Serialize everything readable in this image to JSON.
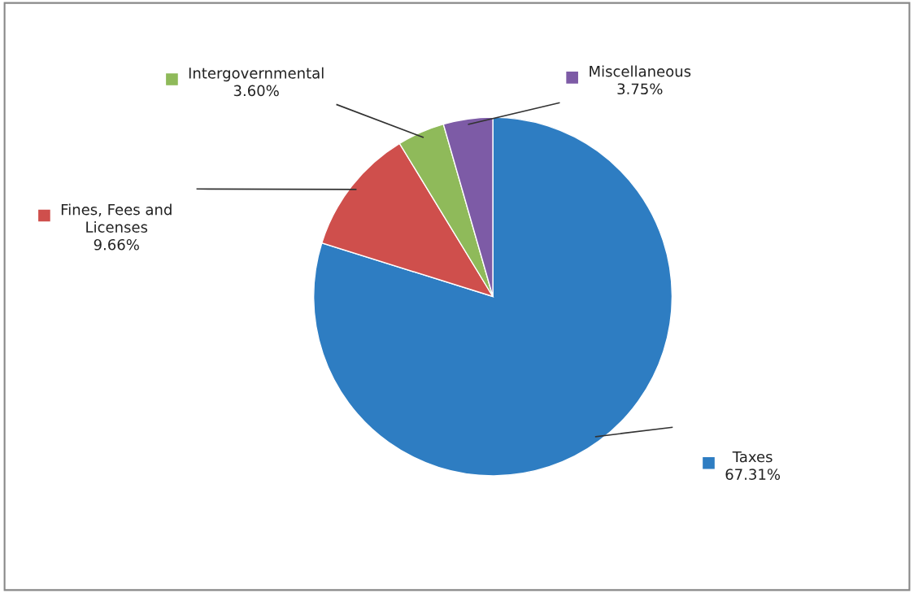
{
  "chart_data": {
    "type": "pie",
    "categories": [
      "Taxes",
      "Fines, Fees and\nLicenses",
      "Intergovernmental",
      "Miscellaneous"
    ],
    "values": [
      67.31,
      9.66,
      3.6,
      3.75
    ],
    "value_labels": [
      "67.31%",
      "9.66%",
      "3.60%",
      "3.75%"
    ],
    "colors": [
      "#2e7dc2",
      "#cf4f4c",
      "#8fba5a",
      "#7d5ba6"
    ],
    "legend": "top"
  }
}
